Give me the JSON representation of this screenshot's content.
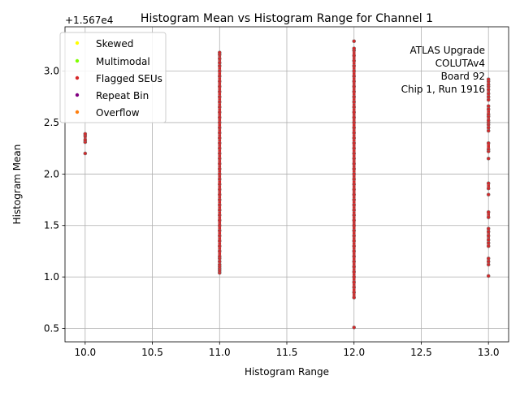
{
  "chart_data": {
    "type": "scatter",
    "title": "Histogram Mean vs Histogram Range for Channel 1",
    "xlabel": "Histogram Range",
    "ylabel": "Histogram Mean",
    "offset_label": "+1.567e4",
    "xlim": [
      9.85,
      13.15
    ],
    "ylim": [
      0.37,
      3.43
    ],
    "xticks": [
      10.0,
      10.5,
      11.0,
      11.5,
      12.0,
      12.5,
      13.0
    ],
    "xtick_labels": [
      "10.0",
      "10.5",
      "11.0",
      "11.5",
      "12.0",
      "12.5",
      "13.0"
    ],
    "yticks": [
      0.5,
      1.0,
      1.5,
      2.0,
      2.5,
      3.0
    ],
    "ytick_labels": [
      "0.5",
      "1.0",
      "1.5",
      "2.0",
      "2.5",
      "3.0"
    ],
    "grid": true,
    "legend_position": "top-left",
    "legend": [
      {
        "label": "Skewed",
        "color": "#ffff00"
      },
      {
        "label": "Multimodal",
        "color": "#7fff00"
      },
      {
        "label": "Flagged SEUs",
        "color": "#d62728"
      },
      {
        "label": "Repeat Bin",
        "color": "#800080"
      },
      {
        "label": "Overflow",
        "color": "#ff7f0e"
      }
    ],
    "annotation_lines": [
      "ATLAS Upgrade",
      "COLUTAv4",
      "Board 92",
      "Chip 1, Run 1916"
    ],
    "point_color": "#d62728",
    "point_edge": "#777777",
    "series": [
      {
        "x": 10,
        "y": [
          2.2,
          2.31,
          2.33,
          2.37,
          2.39
        ]
      },
      {
        "x": 11,
        "y": [
          1.04,
          1.06,
          1.08,
          1.1,
          1.12,
          1.15,
          1.18,
          1.2,
          1.25,
          1.3,
          1.35,
          1.4,
          1.45,
          1.5,
          1.55,
          1.6,
          1.65,
          1.7,
          1.75,
          1.8,
          1.85,
          1.9,
          1.95,
          2.0,
          2.05,
          2.1,
          2.15,
          2.2,
          2.25,
          2.3,
          2.35,
          2.4,
          2.45,
          2.5,
          2.55,
          2.6,
          2.65,
          2.7,
          2.75,
          2.8,
          2.85,
          2.9,
          2.95,
          3.0,
          3.05,
          3.08,
          3.12,
          3.16,
          3.18
        ]
      },
      {
        "x": 12,
        "y": [
          0.51,
          0.8,
          0.85,
          0.9,
          0.95,
          1.0,
          1.05,
          1.1,
          1.15,
          1.2,
          1.25,
          1.3,
          1.35,
          1.4,
          1.45,
          1.5,
          1.55,
          1.6,
          1.65,
          1.7,
          1.75,
          1.8,
          1.85,
          1.9,
          1.95,
          2.0,
          2.05,
          2.1,
          2.15,
          2.2,
          2.25,
          2.3,
          2.35,
          2.4,
          2.45,
          2.5,
          2.55,
          2.6,
          2.65,
          2.7,
          2.75,
          2.8,
          2.85,
          2.9,
          2.95,
          3.0,
          3.05,
          3.1,
          3.15,
          3.2,
          3.22,
          3.29
        ]
      },
      {
        "x": 13,
        "y": [
          1.01,
          1.12,
          1.15,
          1.18,
          1.3,
          1.33,
          1.36,
          1.4,
          1.44,
          1.47,
          1.58,
          1.63,
          1.8,
          1.86,
          1.91,
          2.15,
          2.22,
          2.24,
          2.3,
          2.42,
          2.45,
          2.48,
          2.5,
          2.52,
          2.56,
          2.58,
          2.63,
          2.66,
          2.72,
          2.75,
          2.78,
          2.82,
          2.85,
          2.87,
          2.9,
          2.92
        ]
      }
    ]
  }
}
